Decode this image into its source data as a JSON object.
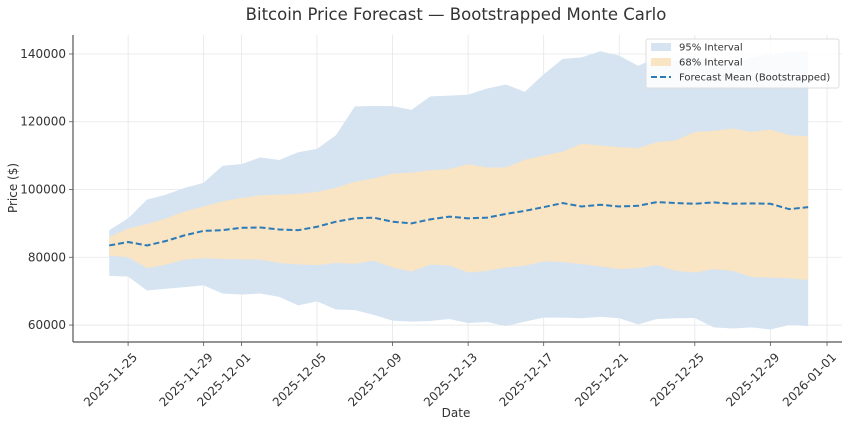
{
  "chart_data": {
    "type": "area",
    "title": "Bitcoin Price Forecast — Bootstrapped Monte Carlo",
    "xlabel": "Date",
    "ylabel": "Price ($)",
    "xlim": [
      "2025-11-22T02:00",
      "2026-01-01T19:00"
    ],
    "ylim": [
      55000,
      145600
    ],
    "grid": true,
    "legend_position": "top-right",
    "x_ticks": [
      "2025-11-25",
      "2025-11-29",
      "2025-12-01",
      "2025-12-05",
      "2025-12-09",
      "2025-12-13",
      "2025-12-17",
      "2025-12-21",
      "2025-12-25",
      "2025-12-29",
      "2026-01-01"
    ],
    "y_ticks": [
      60000,
      80000,
      100000,
      120000,
      140000
    ],
    "start_date": "2025-11-24",
    "end_date": "2025-12-31",
    "series": [
      {
        "name": "95% Interval",
        "kind": "band",
        "color": "#d6e4f2",
        "upper": [
          88000,
          91500,
          97000,
          98500,
          100500,
          102000,
          107000,
          107500,
          109500,
          108700,
          111000,
          112000,
          116000,
          124500,
          124700,
          124600,
          123500,
          127500,
          127700,
          128000,
          129800,
          131000,
          128800,
          134000,
          138500,
          139000,
          140800,
          139500,
          136500,
          139000,
          138000,
          139200,
          137500,
          137000,
          139000,
          140000,
          140500,
          140800
        ],
        "lower": [
          74500,
          74300,
          70200,
          70700,
          71200,
          71700,
          69300,
          69000,
          69300,
          68300,
          65800,
          67000,
          64600,
          64400,
          63000,
          61300,
          61000,
          61200,
          61800,
          60600,
          60900,
          59700,
          61000,
          62200,
          62200,
          62000,
          62400,
          62000,
          60200,
          61800,
          62000,
          62100,
          59300,
          59000,
          59300,
          58700,
          60000,
          59700
        ]
      },
      {
        "name": "68% Interval",
        "kind": "band",
        "color": "#f9e4c4",
        "upper": [
          86000,
          88500,
          89800,
          91500,
          93500,
          95000,
          96500,
          97500,
          98300,
          98500,
          98700,
          99300,
          100500,
          102300,
          103300,
          104700,
          105000,
          105700,
          106000,
          107500,
          106500,
          106500,
          108800,
          110000,
          111200,
          113500,
          113000,
          112500,
          112200,
          114000,
          114500,
          117000,
          117300,
          118000,
          117000,
          117700,
          116000,
          115700
        ],
        "lower": [
          80500,
          80000,
          76800,
          77800,
          79300,
          79700,
          79500,
          79400,
          79300,
          78300,
          77900,
          77700,
          78300,
          78100,
          79000,
          77000,
          75800,
          77800,
          77600,
          75500,
          76000,
          77000,
          77500,
          78800,
          78600,
          78000,
          77300,
          76500,
          76800,
          77700,
          76000,
          75500,
          76500,
          76000,
          74200,
          74000,
          73800,
          73300
        ]
      },
      {
        "name": "Forecast Mean (Bootstrapped)",
        "kind": "line",
        "color": "#2b7bb9",
        "style": "dashed",
        "values": [
          83500,
          84500,
          83500,
          84800,
          86500,
          87800,
          88000,
          88700,
          88800,
          88200,
          88000,
          89000,
          90500,
          91500,
          91700,
          90500,
          90000,
          91200,
          92000,
          91500,
          91700,
          92800,
          93700,
          94800,
          96000,
          95000,
          95500,
          95000,
          95200,
          96300,
          96000,
          95800,
          96200,
          95800,
          95900,
          95800,
          94200,
          94800
        ]
      }
    ]
  }
}
